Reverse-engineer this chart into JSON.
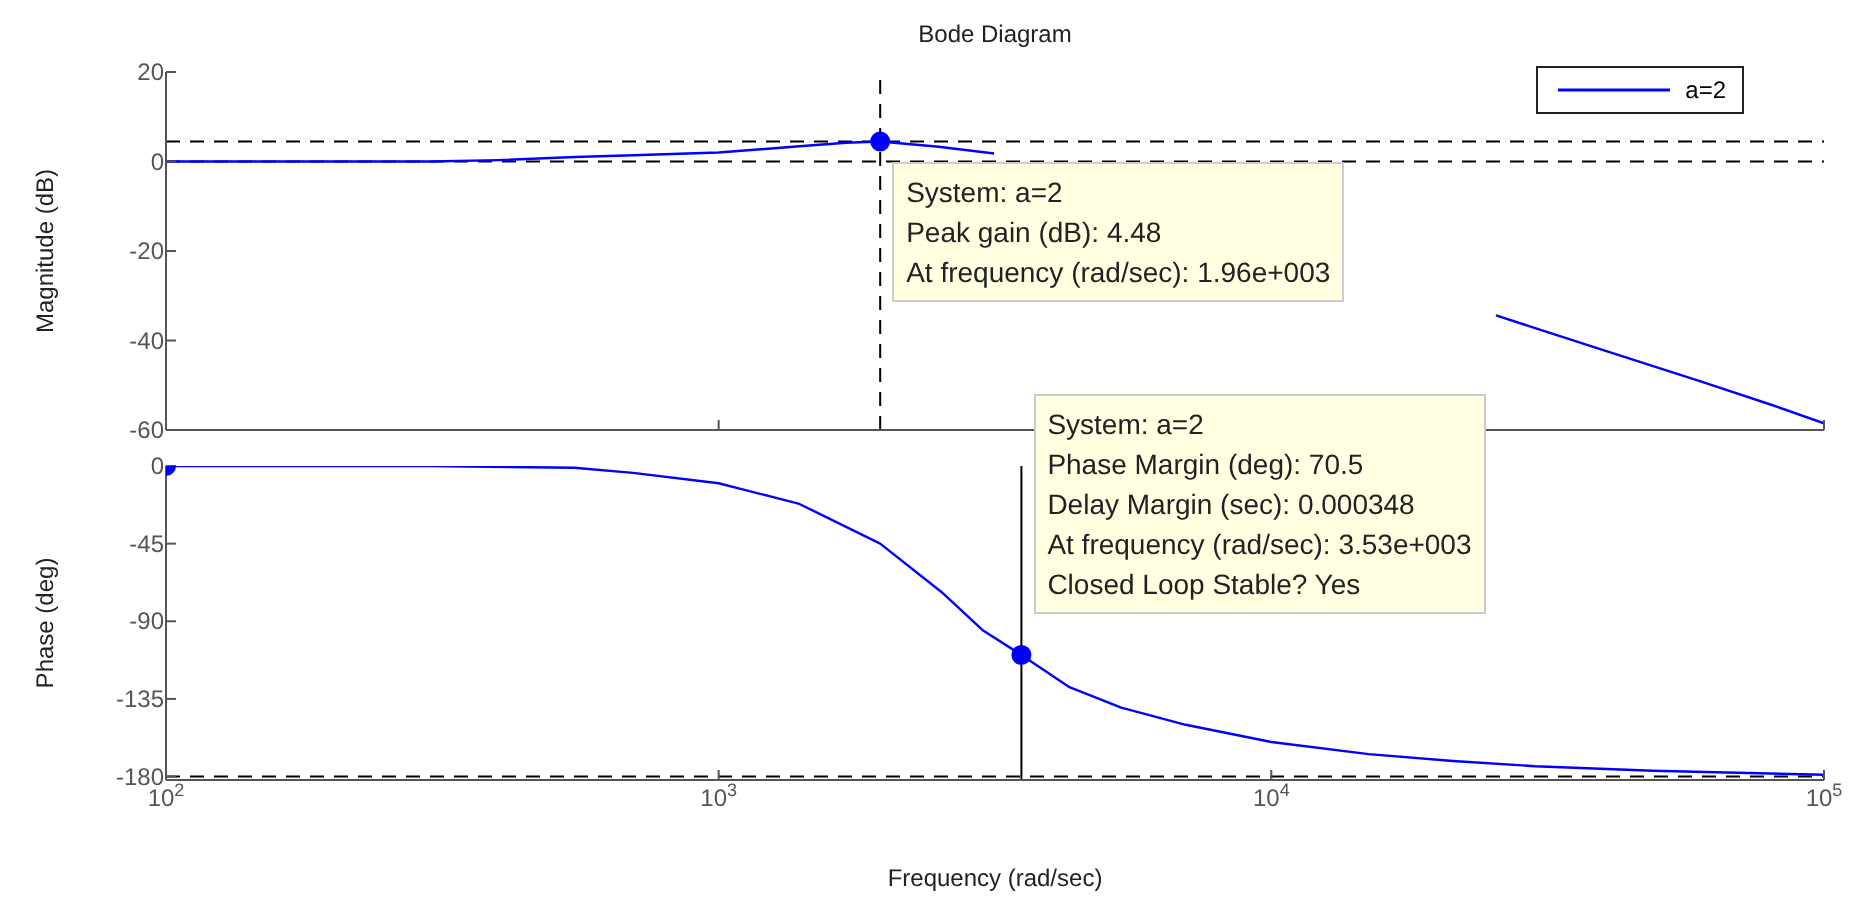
{
  "chart_data": [
    {
      "type": "line",
      "title": "Bode Diagram",
      "ylabel": "Magnitude (dB)",
      "log": "x",
      "xlim": [
        100,
        100000
      ],
      "xticks": [
        100,
        1000,
        10000,
        100000
      ],
      "ylim": [
        -60,
        20
      ],
      "yticks": [
        -60,
        -40,
        -20,
        0,
        20
      ],
      "tick_labels": "y",
      "grid": false,
      "legend": "top right",
      "x": [
        100,
        200,
        300,
        400,
        550,
        700,
        1000,
        1400,
        1700,
        1960,
        2500,
        3150,
        4000,
        8000,
        15000,
        25500,
        40000,
        60000,
        80000,
        100000
      ],
      "series": [
        {
          "name": "a=2",
          "color": "#0000ff",
          "values": [
            0,
            0,
            0,
            0.3,
            1,
            1.4,
            2,
            3.4,
            4.2,
            4.48,
            3.3,
            1.8,
            null,
            null,
            null,
            -34.4,
            -42.2,
            -49.2,
            -54.3,
            -58.5
          ]
        },
        {
          "type": "scatter",
          "color": "#0000ff",
          "marker": "circle",
          "x": [
            1960
          ],
          "values": [
            4.48
          ]
        }
      ],
      "ref_lines": [
        {
          "axis": "y",
          "value": 0,
          "color": "#000000",
          "line_style": "dashed"
        },
        {
          "axis": "y",
          "value": 4.48,
          "color": "#000000",
          "line_style": "dashed"
        },
        {
          "axis": "x",
          "value": 1960,
          "color": "#000000",
          "line_style": "dashed"
        }
      ],
      "annotations": [
        {
          "text": "System: a=2\nPeak gain (dB): 4.48\nAt frequency (rad/sec): 1.96e+003",
          "x": 1960,
          "y": 4.48
        }
      ]
    },
    {
      "type": "line",
      "ylabel": "Phase (deg)",
      "xlabel": "Frequency  (rad/sec)",
      "log": "x",
      "xlim": [
        100,
        100000
      ],
      "xticks": [
        {
          "value": 100,
          "label": "10$^{2}$"
        },
        {
          "value": 1000,
          "label": "10$^{3}$"
        },
        {
          "value": 10000,
          "label": "10$^{4}$"
        },
        {
          "value": 100000,
          "label": "10$^{5}$"
        }
      ],
      "ylim": [
        -182,
        0
      ],
      "yticks": [
        -180,
        -135,
        -90,
        -45,
        0
      ],
      "grid": false,
      "x": [
        100,
        300,
        548,
        700,
        1000,
        1400,
        1960,
        2530,
        3000,
        3530,
        4300,
        5350,
        7000,
        10000,
        15000,
        21300,
        30000,
        49000,
        100000
      ],
      "series": [
        {
          "color": "#0000ff",
          "values": [
            0,
            0,
            -1,
            -4,
            -10,
            -22,
            -45,
            -73,
            -95,
            -109.5,
            -128,
            -140,
            -150,
            -160,
            -167,
            -171,
            -174,
            -176.6,
            -179
          ]
        },
        {
          "type": "scatter",
          "color": "#0000ff",
          "marker": "circle",
          "x": [
            100
          ],
          "values": [
            0
          ]
        },
        {
          "type": "scatter",
          "color": "#0000ff",
          "marker": "circle",
          "x": [
            3530
          ],
          "values": [
            -109.5
          ]
        }
      ],
      "ref_lines": [
        {
          "axis": "y",
          "value": -180,
          "color": "#000000",
          "line_style": "dashed"
        },
        {
          "axis": "x",
          "value": 3530,
          "color": "#000000",
          "line_style": "solid"
        }
      ],
      "annotations": [
        {
          "text": "System: a=2\nPhase Margin (deg): 70.5\nDelay Margin (sec): 0.000348\nAt frequency (rad/sec): 3.53e+003\nClosed Loop Stable? Yes",
          "x": 3530,
          "y": -109.5
        }
      ]
    }
  ]
}
